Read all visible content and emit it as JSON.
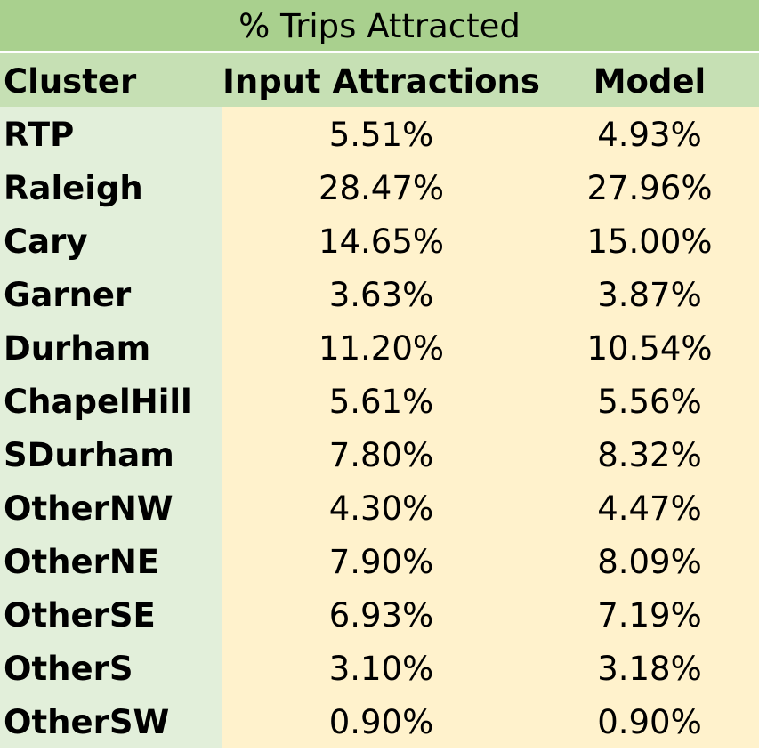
{
  "table": {
    "title": "% Trips Attracted",
    "headers": [
      "Cluster",
      "Input Attractions",
      "Model"
    ],
    "rows": [
      {
        "cluster": "RTP",
        "input": "5.51%",
        "model": "4.93%"
      },
      {
        "cluster": "Raleigh",
        "input": "28.47%",
        "model": "27.96%"
      },
      {
        "cluster": "Cary",
        "input": "14.65%",
        "model": "15.00%"
      },
      {
        "cluster": "Garner",
        "input": "3.63%",
        "model": "3.87%"
      },
      {
        "cluster": "Durham",
        "input": "11.20%",
        "model": "10.54%"
      },
      {
        "cluster": "ChapelHill",
        "input": "5.61%",
        "model": "5.56%"
      },
      {
        "cluster": "SDurham",
        "input": "7.80%",
        "model": "8.32%"
      },
      {
        "cluster": "OtherNW",
        "input": "4.30%",
        "model": "4.47%"
      },
      {
        "cluster": "OtherNE",
        "input": "7.90%",
        "model": "8.09%"
      },
      {
        "cluster": "OtherSE",
        "input": "6.93%",
        "model": "7.19%"
      },
      {
        "cluster": "OtherS",
        "input": "3.10%",
        "model": "3.18%"
      },
      {
        "cluster": "OtherSW",
        "input": "0.90%",
        "model": "0.90%"
      }
    ]
  },
  "colors": {
    "title_bg": "#a9d08e",
    "header_bg": "#c6e0b4",
    "cluster_bg": "#e2efda",
    "value_bg": "#fff2cc"
  }
}
